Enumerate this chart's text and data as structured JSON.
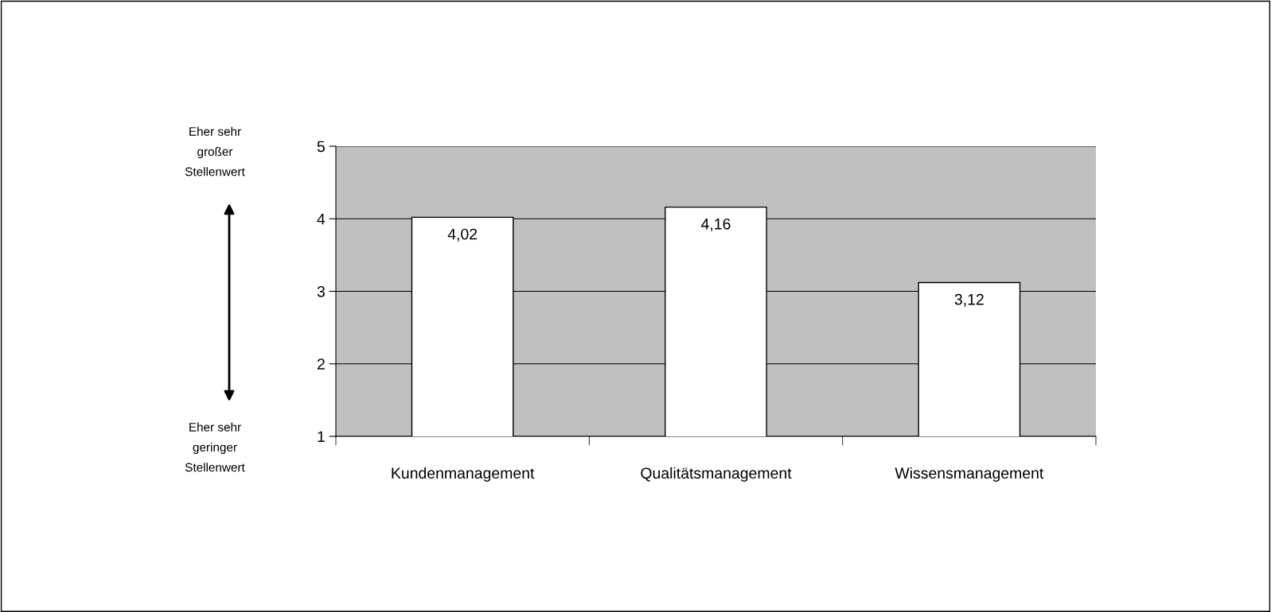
{
  "chart_data": {
    "type": "bar",
    "categories": [
      "Kundenmanagement",
      "Qualitätsmanagement",
      "Wissensmanagement"
    ],
    "values": [
      4.02,
      4.16,
      3.12
    ],
    "value_labels": [
      "4,02",
      "4,16",
      "3,12"
    ],
    "color": "#ffffff",
    "ylim": [
      1,
      5
    ],
    "yticks": [
      1,
      2,
      3,
      4,
      5
    ],
    "grid": "y",
    "annotations": [
      "Eher sehr\ngroßer\nStellenwert",
      "Eher sehr\ngeringer\nStellenwert"
    ]
  }
}
